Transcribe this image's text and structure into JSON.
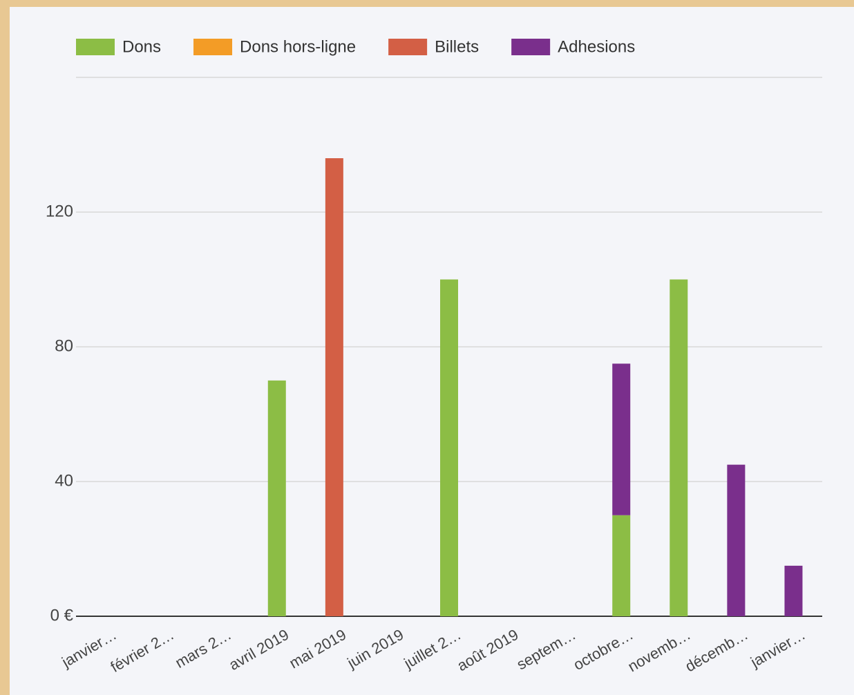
{
  "chart_data": {
    "type": "bar",
    "stacked": true,
    "categories": [
      "janvier…",
      "février 2…",
      "mars 2…",
      "avril 2019",
      "mai 2019",
      "juin 2019",
      "juillet 2…",
      "août 2019",
      "septem…",
      "octobre…",
      "novemb…",
      "décemb…",
      "janvier…"
    ],
    "series": [
      {
        "name": "Dons",
        "color": "#8cbd45",
        "values": [
          0,
          0,
          0,
          70,
          0,
          0,
          100,
          0,
          0,
          30,
          100,
          0,
          0
        ]
      },
      {
        "name": "Dons hors-ligne",
        "color": "#f39c26",
        "values": [
          0,
          0,
          0,
          0,
          0,
          0,
          0,
          0,
          0,
          0,
          0,
          0,
          0
        ]
      },
      {
        "name": "Billets",
        "color": "#d35f45",
        "values": [
          0,
          0,
          0,
          0,
          136,
          0,
          0,
          0,
          0,
          0,
          0,
          0,
          0
        ]
      },
      {
        "name": "Adhesions",
        "color": "#7a2f8c",
        "values": [
          0,
          0,
          0,
          0,
          0,
          0,
          0,
          0,
          0,
          45,
          0,
          45,
          15
        ]
      }
    ],
    "ylim": [
      0,
      160
    ],
    "yticks": [
      {
        "value": 0,
        "label": "0 €"
      },
      40,
      80,
      120
    ],
    "grid": true,
    "legend": "top"
  }
}
